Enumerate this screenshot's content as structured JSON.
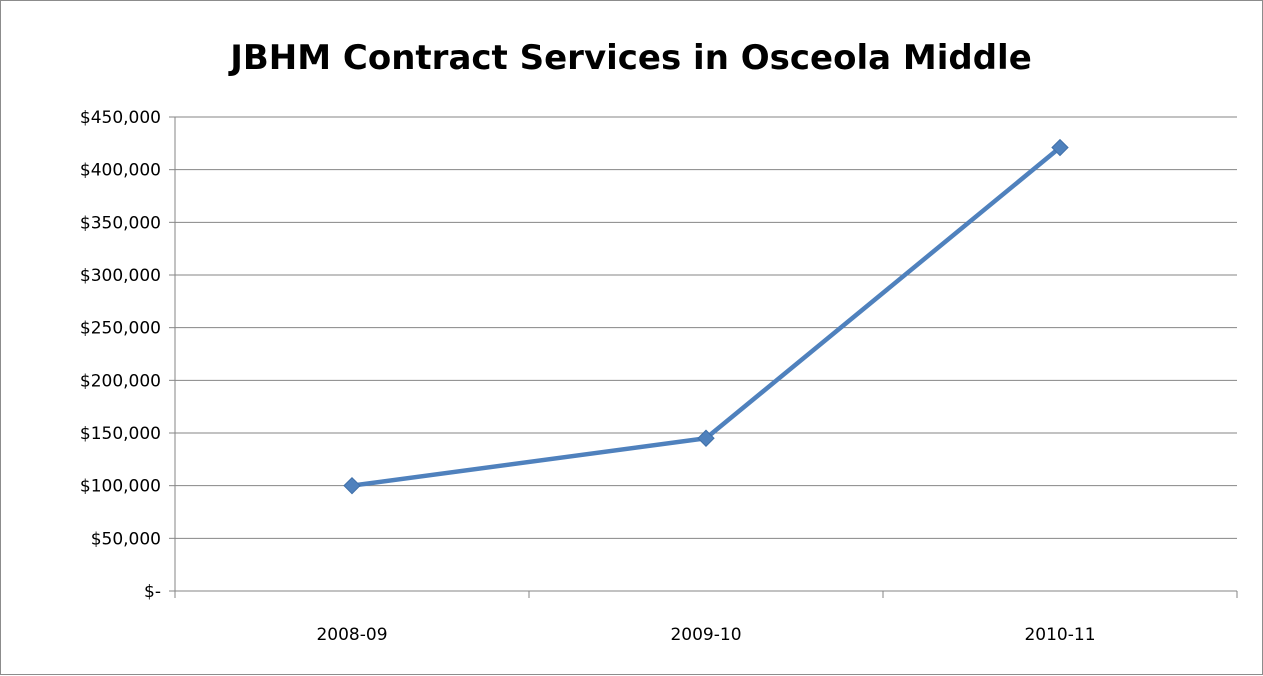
{
  "chart_data": {
    "type": "line",
    "title": "JBHM Contract Services in Osceola Middle",
    "xlabel": "",
    "ylabel": "",
    "categories": [
      "2008-09",
      "2009-10",
      "2010-11"
    ],
    "series": [
      {
        "values": [
          100000,
          145000,
          421000
        ]
      }
    ],
    "ylim": [
      0,
      450000
    ],
    "yticks": [
      0,
      50000,
      100000,
      150000,
      200000,
      250000,
      300000,
      350000,
      400000,
      450000
    ],
    "ytick_labels": [
      "$-",
      "$50,000",
      "$100,000",
      "$150,000",
      "$200,000",
      "$250,000",
      "$300,000",
      "$350,000",
      "$400,000",
      "$450,000"
    ],
    "grid": true,
    "legend": "none",
    "colors": {
      "series": "#4F81BD",
      "grid": "#868686",
      "axis": "#868686"
    }
  }
}
